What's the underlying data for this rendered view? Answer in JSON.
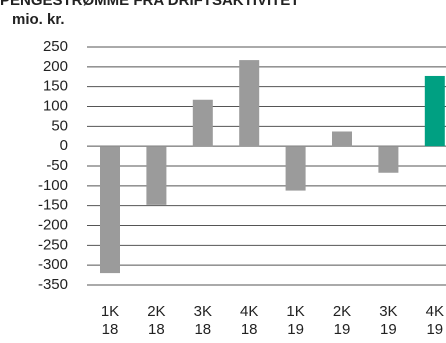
{
  "chart_data": {
    "type": "bar",
    "title": "PENGESTRØMME FRA DRIFTSAKTIVITET",
    "y_label": "mio. kr.",
    "categories": [
      [
        "1K",
        "18"
      ],
      [
        "2K",
        "18"
      ],
      [
        "3K",
        "18"
      ],
      [
        "4K",
        "18"
      ],
      [
        "1K",
        "19"
      ],
      [
        "2K",
        "19"
      ],
      [
        "3K",
        "19"
      ],
      [
        "4K",
        "19"
      ]
    ],
    "values": [
      -320,
      -148,
      117,
      217,
      -112,
      37,
      -67,
      177
    ],
    "colors": [
      "#9b9b9b",
      "#9b9b9b",
      "#9b9b9b",
      "#9b9b9b",
      "#9b9b9b",
      "#9b9b9b",
      "#9b9b9b",
      "#00a082"
    ],
    "ylim": [
      -350,
      250
    ],
    "yticks": [
      250,
      200,
      150,
      100,
      50,
      0,
      -50,
      -100,
      -150,
      -200,
      -250,
      -300,
      -350
    ],
    "grid": true
  }
}
